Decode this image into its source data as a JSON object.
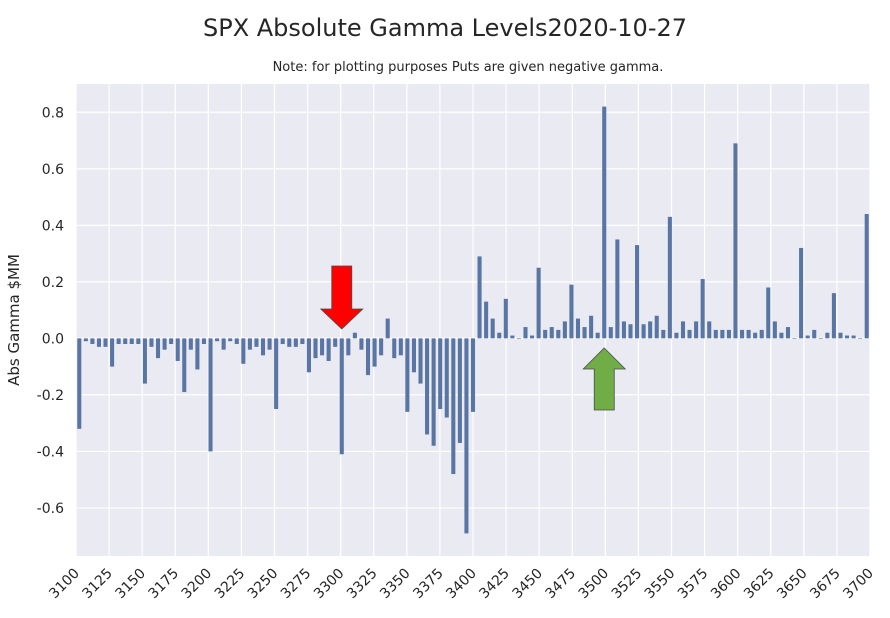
{
  "chart_data": {
    "type": "bar",
    "title": "SPX Absolute Gamma Levels2020-10-27",
    "subtitle": "Note: for plotting purposes Puts are given negative gamma.",
    "xlabel": "",
    "ylabel": "Abs Gamma $MM",
    "ylim": [
      -0.77,
      0.9
    ],
    "yticks": [
      -0.6,
      -0.4,
      -0.2,
      0.0,
      0.2,
      0.4,
      0.6,
      0.8
    ],
    "ytick_labels": [
      "-0.6",
      "-0.4",
      "-0.2",
      "0.0",
      "0.2",
      "0.4",
      "0.6",
      "0.8"
    ],
    "xtick_labels": [
      "3100",
      "3125",
      "3150",
      "3175",
      "3200",
      "3225",
      "3250",
      "3275",
      "3300",
      "3325",
      "3350",
      "3375",
      "3400",
      "3425",
      "3450",
      "3475",
      "3500",
      "3525",
      "3550",
      "3575",
      "3600",
      "3625",
      "3650",
      "3675",
      "3700"
    ],
    "grid": true,
    "bar_color": "#5975a4",
    "background_color": "#eaeaf2",
    "x_start": 3100,
    "x_step": 5,
    "values": [
      -0.32,
      -0.01,
      -0.02,
      -0.03,
      -0.03,
      -0.1,
      -0.02,
      -0.02,
      -0.02,
      -0.02,
      -0.16,
      -0.03,
      -0.07,
      -0.04,
      -0.02,
      -0.08,
      -0.19,
      -0.04,
      -0.11,
      -0.02,
      -0.4,
      -0.01,
      -0.04,
      -0.01,
      -0.02,
      -0.09,
      -0.04,
      -0.03,
      -0.06,
      -0.04,
      -0.25,
      -0.02,
      -0.03,
      -0.03,
      -0.02,
      -0.12,
      -0.07,
      -0.06,
      -0.08,
      -0.03,
      -0.41,
      -0.06,
      0.02,
      -0.04,
      -0.13,
      -0.1,
      -0.06,
      0.07,
      -0.07,
      -0.06,
      -0.26,
      -0.12,
      -0.16,
      -0.34,
      -0.38,
      -0.25,
      -0.28,
      -0.48,
      -0.37,
      -0.69,
      -0.26,
      0.29,
      0.13,
      0.07,
      0.02,
      0.14,
      0.01,
      0.0,
      0.04,
      0.01,
      0.25,
      0.03,
      0.04,
      0.03,
      0.06,
      0.19,
      0.07,
      0.04,
      0.08,
      0.02,
      0.82,
      0.04,
      0.35,
      0.06,
      0.05,
      0.33,
      0.05,
      0.06,
      0.08,
      0.03,
      0.43,
      0.02,
      0.06,
      0.03,
      0.06,
      0.21,
      0.06,
      0.03,
      0.03,
      0.03,
      0.69,
      0.03,
      0.03,
      0.02,
      0.03,
      0.18,
      0.06,
      0.02,
      0.04,
      0.0,
      0.32,
      0.01,
      0.03,
      0.0,
      0.02,
      0.16,
      0.02,
      0.01,
      0.01,
      0.0,
      0.44
    ],
    "annotations": [
      {
        "type": "arrow",
        "direction": "down",
        "x": 3300,
        "color": "#ff0000"
      },
      {
        "type": "arrow",
        "direction": "up",
        "x": 3500,
        "color": "#70ad47"
      }
    ]
  }
}
